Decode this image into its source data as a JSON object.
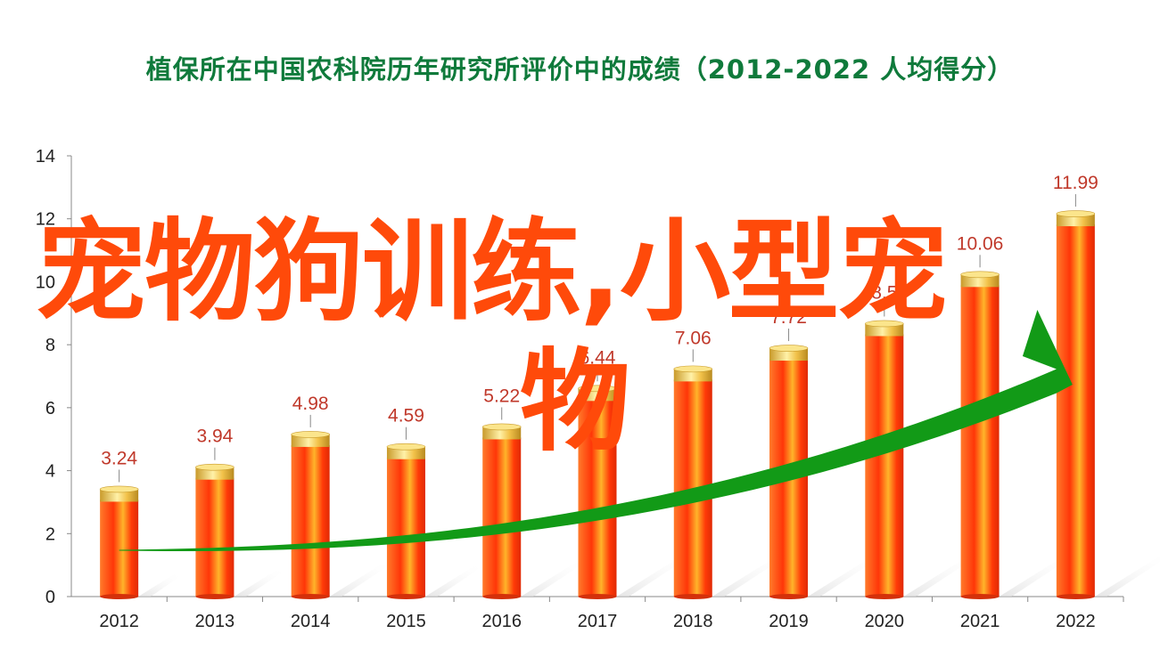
{
  "title": "植保所在中国农科院历年研究所评价中的成绩（2012-2022  人均得分）",
  "overlay_text": [
    "宠物狗训练,小型宠",
    "物"
  ],
  "colors": {
    "title": "#0f7a3b",
    "bar_top": "#f6cc58",
    "bar_main": "#ff3a0a",
    "label": "#c0392b",
    "arrow": "#129a17",
    "overlay": "#ff4a0a"
  },
  "chart_data": {
    "type": "bar",
    "title": "植保所在中国农科院历年研究所评价中的成绩（2012-2022  人均得分）",
    "xlabel": "",
    "ylabel": "",
    "categories": [
      "2012",
      "2013",
      "2014",
      "2015",
      "2016",
      "2017",
      "2018",
      "2019",
      "2020",
      "2021",
      "2022"
    ],
    "values": [
      3.24,
      3.94,
      4.98,
      4.59,
      5.22,
      6.44,
      7.06,
      7.72,
      8.5,
      10.06,
      11.99
    ],
    "value_labels": [
      "3.24",
      "3.94",
      "4.98",
      "4.59",
      "5.22",
      "6.44",
      "7.06",
      "7.72",
      "8.5",
      "10.06",
      "11.99"
    ],
    "ylim": [
      0,
      14
    ],
    "yticks": [
      "0",
      "2",
      "4",
      "6",
      "8",
      "10",
      "12",
      "14"
    ],
    "grid": false,
    "legend": "none",
    "trend_arrow": "rising"
  }
}
